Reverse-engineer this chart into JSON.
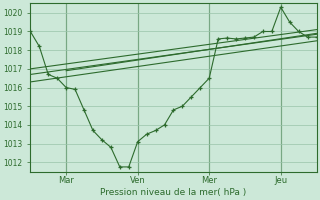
{
  "background_color": "#cce8d8",
  "grid_color": "#99c4aa",
  "line_color": "#2d6b2d",
  "ylim": [
    1011.5,
    1020.5
  ],
  "ylabel_ticks": [
    1012,
    1013,
    1014,
    1015,
    1016,
    1017,
    1018,
    1019,
    1020
  ],
  "xlabel": "Pression niveau de la mer( hPa )",
  "xtick_labels": [
    "Mar",
    "Ven",
    "Mer",
    "Jeu"
  ],
  "xtick_positions": [
    16,
    48,
    80,
    112
  ],
  "xlim": [
    0,
    128
  ],
  "main_x": [
    0,
    4,
    8,
    12,
    16,
    20,
    24,
    28,
    32,
    36,
    40,
    44,
    48,
    52,
    56,
    60,
    64,
    68,
    72,
    76,
    80,
    84,
    88,
    92,
    96,
    100,
    104,
    108,
    112,
    116,
    120,
    124,
    128
  ],
  "main_y": [
    1019.0,
    1018.2,
    1016.7,
    1016.5,
    1016.0,
    1015.9,
    1014.8,
    1013.7,
    1013.2,
    1012.8,
    1011.75,
    1011.75,
    1013.1,
    1013.5,
    1013.7,
    1014.0,
    1014.8,
    1015.0,
    1015.5,
    1016.0,
    1016.5,
    1018.6,
    1018.65,
    1018.6,
    1018.65,
    1018.7,
    1019.0,
    1019.0,
    1020.3,
    1019.5,
    1019.0,
    1018.7,
    1018.7
  ],
  "trend1_x": [
    0,
    128
  ],
  "trend1_y": [
    1016.3,
    1018.5
  ],
  "trend2_x": [
    0,
    128
  ],
  "trend2_y": [
    1016.7,
    1018.85
  ],
  "trend3_x": [
    0,
    128
  ],
  "trend3_y": [
    1017.0,
    1019.1
  ],
  "trend4_x": [
    16,
    128
  ],
  "trend4_y": [
    1016.9,
    1018.9
  ]
}
